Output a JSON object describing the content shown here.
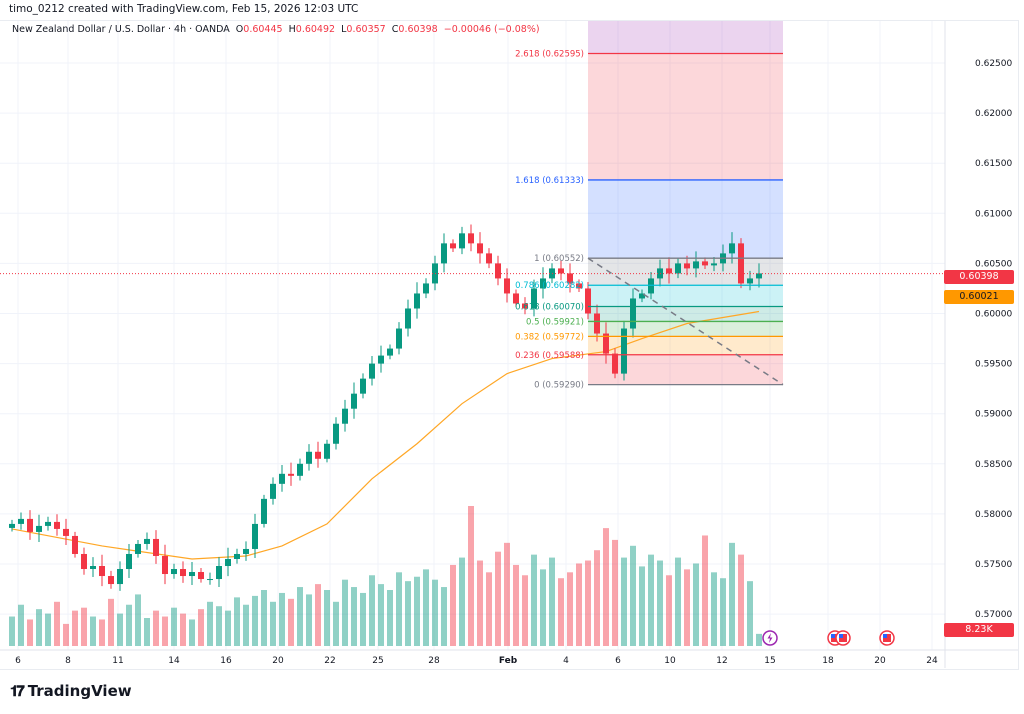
{
  "credit": "timo_0212 created with TradingView.com, Feb 15, 2026 12:03 UTC",
  "legend": {
    "symbol": "New Zealand Dollar / U.S. Dollar · 4h · OANDA",
    "o_label": "O",
    "o": "0.60445",
    "h_label": "H",
    "h": "0.60492",
    "l_label": "L",
    "l": "0.60357",
    "c_label": "C",
    "c": "0.60398",
    "change": "−0.00046 (−0.08%)"
  },
  "price_axis": {
    "ticks": [
      "0.62500",
      "0.62000",
      "0.61500",
      "0.61000",
      "0.60500",
      "0.60000",
      "0.59500",
      "0.59000",
      "0.58500",
      "0.58000",
      "0.57500",
      "0.57000"
    ],
    "last_price_tag": "0.60398",
    "ma_tag": "0.60021",
    "volume_tag": "8.23K"
  },
  "time_axis": {
    "ticks": [
      "6",
      "8",
      "11",
      "14",
      "16",
      "20",
      "22",
      "25",
      "28",
      "Feb",
      "4",
      "6",
      "10",
      "12",
      "15",
      "18",
      "20",
      "24"
    ]
  },
  "fib": {
    "levels": [
      {
        "ratio": 2.618,
        "label": "2.618 (0.62595)",
        "price": 0.62595,
        "color": "#f23645"
      },
      {
        "ratio": 1.618,
        "label": "1.618 (0.61333)",
        "price": 0.61333,
        "color": "#2962ff"
      },
      {
        "ratio": 1,
        "label": "1 (0.60552)",
        "price": 0.60552,
        "color": "#787b86"
      },
      {
        "ratio": 0.786,
        "label": "0.786 (0.60282)",
        "price": 0.60282,
        "color": "#00bcd4"
      },
      {
        "ratio": 0.618,
        "label": "0.618 (0.60070)",
        "price": 0.6007,
        "color": "#089981"
      },
      {
        "ratio": 0.5,
        "label": "0.5 (0.59921)",
        "price": 0.59921,
        "color": "#4caf50"
      },
      {
        "ratio": 0.382,
        "label": "0.382 (0.59772)",
        "price": 0.59772,
        "color": "#ff9800"
      },
      {
        "ratio": 0.236,
        "label": "0.236 (0.59588)",
        "price": 0.59588,
        "color": "#f23645"
      },
      {
        "ratio": 0,
        "label": "0 (0.59290)",
        "price": 0.5929,
        "color": "#787b86"
      }
    ]
  },
  "colors": {
    "up": "#089981",
    "down": "#f23645",
    "ma": "#ffa726",
    "accent": "#f23645"
  },
  "chart_data": {
    "type": "candlestick",
    "title": "New Zealand Dollar / U.S. Dollar · 4h · OANDA",
    "ylim": [
      0.5685,
      0.629
    ],
    "closes": [
      0.579,
      0.5795,
      0.5782,
      0.5788,
      0.5792,
      0.5785,
      0.5778,
      0.576,
      0.5745,
      0.5748,
      0.5738,
      0.573,
      0.5745,
      0.576,
      0.577,
      0.5775,
      0.5758,
      0.574,
      0.5745,
      0.5738,
      0.5742,
      0.5735,
      0.5735,
      0.5748,
      0.5755,
      0.576,
      0.5765,
      0.579,
      0.5815,
      0.583,
      0.584,
      0.5838,
      0.585,
      0.5862,
      0.5855,
      0.587,
      0.589,
      0.5905,
      0.592,
      0.5935,
      0.595,
      0.5958,
      0.5965,
      0.5985,
      0.6005,
      0.602,
      0.603,
      0.605,
      0.607,
      0.6065,
      0.608,
      0.607,
      0.606,
      0.605,
      0.6035,
      0.602,
      0.601,
      0.6005,
      0.6025,
      0.6035,
      0.6045,
      0.604,
      0.603,
      0.6025,
      0.6,
      0.598,
      0.596,
      0.594,
      0.5985,
      0.6015,
      0.602,
      0.6035,
      0.6045,
      0.604,
      0.605,
      0.6045,
      0.6052,
      0.6048,
      0.605,
      0.606,
      0.607,
      0.603,
      0.6035,
      0.604
    ],
    "volumes_k": [
      20,
      28,
      18,
      25,
      22,
      30,
      15,
      24,
      26,
      20,
      18,
      32,
      22,
      28,
      35,
      19,
      24,
      20,
      26,
      22,
      18,
      25,
      30,
      27,
      24,
      33,
      28,
      34,
      38,
      30,
      36,
      32,
      40,
      35,
      42,
      38,
      30,
      45,
      40,
      36,
      48,
      42,
      38,
      50,
      44,
      47,
      52,
      45,
      40,
      55,
      60,
      95,
      58,
      50,
      64,
      70,
      55,
      48,
      62,
      52,
      60,
      46,
      50,
      56,
      58,
      65,
      80,
      72,
      60,
      68,
      54,
      62,
      58,
      48,
      60,
      52,
      56,
      75,
      50,
      46,
      70,
      62,
      44,
      8.23
    ],
    "ma": {
      "index": [
        0,
        10,
        20,
        26,
        30,
        35,
        40,
        45,
        50,
        55,
        60,
        66,
        70,
        75,
        83
      ],
      "values": [
        0.5785,
        0.5768,
        0.5755,
        0.5758,
        0.5768,
        0.579,
        0.5835,
        0.587,
        0.591,
        0.594,
        0.5955,
        0.5962,
        0.5975,
        0.599,
        0.6002
      ]
    }
  },
  "logo_text": "TradingView"
}
